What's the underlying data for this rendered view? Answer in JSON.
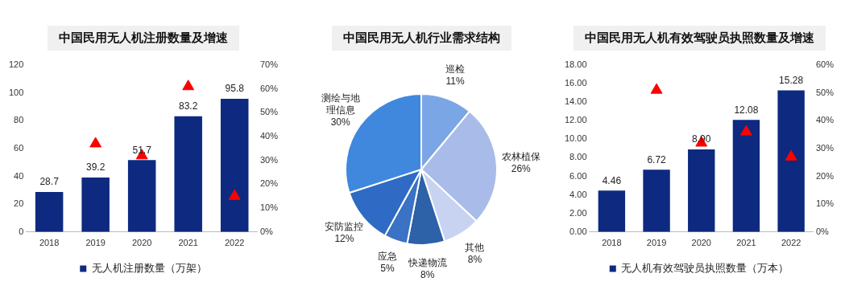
{
  "chart_data": [
    {
      "type": "bar",
      "title": "中国民用无人机注册数量及增速",
      "categories": [
        "2018",
        "2019",
        "2020",
        "2021",
        "2022"
      ],
      "series": [
        {
          "name": "无人机注册数量（万架）",
          "color": "#0d2a80",
          "values": [
            28.7,
            39.2,
            51.7,
            83.2,
            95.8
          ],
          "value_labels": [
            "28.7",
            "39.2",
            "51.7",
            "83.2",
            "95.8"
          ]
        },
        {
          "type": "scatter",
          "axis": "y2",
          "color": "#ff0000",
          "values": [
            null,
            37,
            32,
            61,
            15
          ]
        }
      ],
      "ylim": [
        0,
        120
      ],
      "yticks": [
        0,
        20,
        40,
        60,
        80,
        100,
        120
      ],
      "y2lim": [
        0,
        70
      ],
      "y2ticks": [
        {
          "value": 0,
          "label": "0%"
        },
        {
          "value": 10,
          "label": "10%"
        },
        {
          "value": 20,
          "label": "20%"
        },
        {
          "value": 30,
          "label": "30%"
        },
        {
          "value": 40,
          "label": "40%"
        },
        {
          "value": 50,
          "label": "50%"
        },
        {
          "value": 60,
          "label": "60%"
        },
        {
          "value": 70,
          "label": "70%"
        }
      ],
      "marker": "triangle",
      "legend": "bottom",
      "grid": false
    },
    {
      "type": "pie",
      "title": "中国民用无人机行业需求结构",
      "categories": [
        "巡检",
        "农林植保",
        "其他",
        "快递物流",
        "应急",
        "安防监控",
        "测绘与地理信息"
      ],
      "values": [
        11,
        26,
        8,
        8,
        5,
        12,
        30
      ],
      "value_labels": [
        "11%",
        "26%",
        "8%",
        "8%",
        "5%",
        "12%",
        "30%"
      ],
      "colors": [
        "#7ba6e6",
        "#a9bce9",
        "#c7d3f1",
        "#2d61a8",
        "#3a72c4",
        "#2f6bc4",
        "#3f88de"
      ],
      "legend": false
    },
    {
      "type": "bar",
      "title": "中国民用无人机有效驾驶员执照数量及增速",
      "categories": [
        "2018",
        "2019",
        "2020",
        "2021",
        "2022"
      ],
      "series": [
        {
          "name": "无人机有效驾驶员执照数量（万本）",
          "color": "#0d2a80",
          "values": [
            4.46,
            6.72,
            8.9,
            12.08,
            15.28
          ],
          "value_labels": [
            "4.46",
            "6.72",
            "8.90",
            "12.08",
            "15.28"
          ]
        },
        {
          "type": "scatter",
          "axis": "y2",
          "color": "#ff0000",
          "values": [
            null,
            51,
            32,
            36,
            27
          ]
        }
      ],
      "ylim": [
        0,
        18
      ],
      "yticks": [
        {
          "value": 0,
          "label": "0.00"
        },
        {
          "value": 2,
          "label": "2.00"
        },
        {
          "value": 4,
          "label": "4.00"
        },
        {
          "value": 6,
          "label": "6.00"
        },
        {
          "value": 8,
          "label": "8.00"
        },
        {
          "value": 10,
          "label": "10.00"
        },
        {
          "value": 12,
          "label": "12.00"
        },
        {
          "value": 14,
          "label": "14.00"
        },
        {
          "value": 16,
          "label": "16.00"
        },
        {
          "value": 18,
          "label": "18.00"
        }
      ],
      "y2lim": [
        0,
        60
      ],
      "y2ticks": [
        {
          "value": 0,
          "label": "0%"
        },
        {
          "value": 10,
          "label": "10%"
        },
        {
          "value": 20,
          "label": "20%"
        },
        {
          "value": 30,
          "label": "30%"
        },
        {
          "value": 40,
          "label": "40%"
        },
        {
          "value": 50,
          "label": "50%"
        },
        {
          "value": 60,
          "label": "60%"
        }
      ],
      "marker": "triangle",
      "legend": "bottom",
      "grid": false
    }
  ]
}
